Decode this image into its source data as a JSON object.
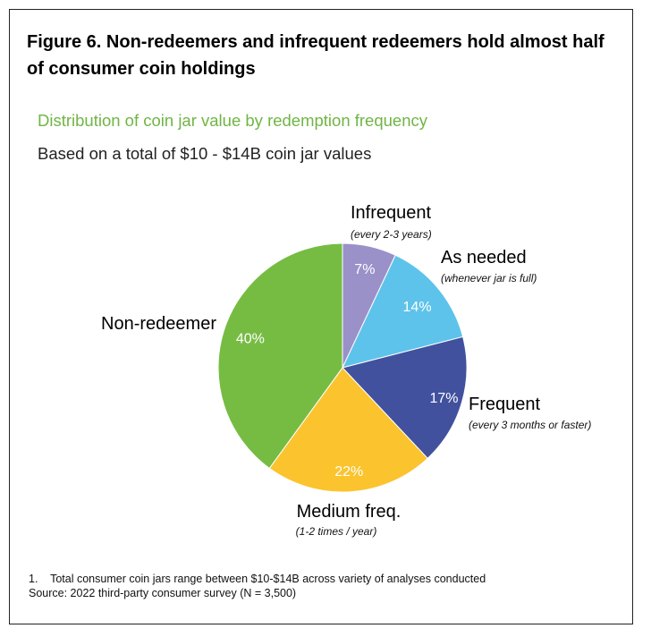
{
  "figure": {
    "title": "Figure 6. Non-redeemers and infrequent redeemers hold almost half of consumer coin holdings",
    "subtitle": "Distribution of coin jar value by redemption frequency",
    "subtitle2": "Based on a total of $10 - $14B coin jar values"
  },
  "chart_data": {
    "type": "pie",
    "title": "Distribution of coin jar value by redemption frequency",
    "start_angle_deg": 0,
    "direction": "clockwise",
    "slices": [
      {
        "label": "Infrequent",
        "sublabel": "(every 2-3 years)",
        "value": 7,
        "value_label": "7%",
        "color": "#9b91c9"
      },
      {
        "label": "As needed",
        "sublabel": "(whenever jar is full)",
        "value": 14,
        "value_label": "14%",
        "color": "#5ec3ea"
      },
      {
        "label": "Frequent",
        "sublabel": "(every 3 months or faster)",
        "value": 17,
        "value_label": "17%",
        "color": "#42519e"
      },
      {
        "label": "Medium freq.",
        "sublabel": "(1-2 times / year)",
        "value": 22,
        "value_label": "22%",
        "color": "#fbc32d"
      },
      {
        "label": "Non-redeemer",
        "sublabel": "",
        "value": 40,
        "value_label": "40%",
        "color": "#76bc43"
      }
    ]
  },
  "footnote": {
    "line1": "1.    Total consumer coin jars range between $10-$14B across variety of analyses conducted",
    "line2": "Source: 2022 third-party consumer survey (N = 3,500)"
  }
}
